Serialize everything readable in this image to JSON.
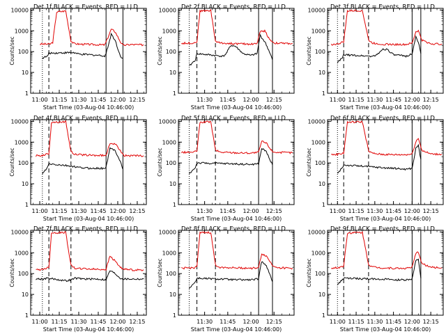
{
  "figure": {
    "series_colors": {
      "events": "#000000",
      "lld": "#e00000"
    },
    "line_color": "#000000"
  },
  "chart_data": [
    {
      "type": "line",
      "title": "Det 1f BLACK = Events, RED = LLD",
      "xlabel": "Start Time (03-Aug-04 10:46:00)",
      "ylabel": "Counts/sec",
      "yscale": "log",
      "ylim": [
        1,
        12000
      ],
      "xlim": [
        "10:53",
        "12:22"
      ],
      "xticks": [
        "11:00",
        "11:15",
        "11:30",
        "11:45",
        "12:00",
        "12:15"
      ],
      "yticks": [
        "1",
        "10",
        "100",
        "1000",
        "10000"
      ],
      "markers": {
        "dotted": [
          "11:02"
        ],
        "dashed": [
          "11:07",
          "11:24"
        ],
        "solid": [
          "11:51",
          "12:04"
        ]
      },
      "series": [
        {
          "color": "#e00000",
          "x": [
            "11:00",
            "11:08",
            "11:10",
            "11:13",
            "11:20",
            "11:24",
            "11:26",
            "11:30",
            "11:40",
            "11:50",
            "11:51",
            "11:55",
            "11:58",
            "12:02",
            "12:04",
            "12:10",
            "12:20"
          ],
          "values": [
            230,
            230,
            280,
            8000,
            9000,
            330,
            250,
            230,
            220,
            210,
            290,
            1200,
            900,
            300,
            200,
            220,
            210
          ]
        },
        {
          "color": "#000000",
          "x": [
            "11:02",
            "11:06",
            "11:07",
            "11:26",
            "11:30",
            "11:40",
            "11:48",
            "11:50",
            "11:51",
            "11:55",
            "11:58",
            "12:02",
            "12:04"
          ],
          "values": [
            50,
            60,
            85,
            90,
            75,
            70,
            65,
            60,
            80,
            700,
            350,
            60,
            50
          ]
        }
      ]
    },
    {
      "type": "line",
      "title": "Det 2f BLACK = Events, RED = LLD",
      "xlabel": "Start Time (03-Aug-04 10:46:00)",
      "ylabel": "Counts/sec",
      "yscale": "log",
      "ylim": [
        1,
        12000
      ],
      "xlim": [
        "11:13",
        "12:28"
      ],
      "xticks": [
        "11:30",
        "11:45",
        "12:00",
        "12:15"
      ],
      "yticks": [
        "1",
        "10",
        "100",
        "1000",
        "10000"
      ],
      "markers": {
        "dotted": [
          "11:20"
        ],
        "dashed": [
          "11:25",
          "11:37"
        ],
        "solid": [
          "12:05",
          "12:14"
        ]
      },
      "series": [
        {
          "color": "#e00000",
          "x": [
            "11:15",
            "11:23",
            "11:25",
            "11:27",
            "11:34",
            "11:37",
            "11:40",
            "11:50",
            "12:00",
            "12:04",
            "12:06",
            "12:09",
            "12:12",
            "12:15",
            "12:20",
            "12:27"
          ],
          "values": [
            250,
            260,
            300,
            9000,
            9500,
            320,
            260,
            240,
            230,
            250,
            900,
            1000,
            400,
            260,
            250,
            245
          ]
        },
        {
          "color": "#000000",
          "x": [
            "11:20",
            "11:24",
            "11:25",
            "11:42",
            "11:44",
            "11:47",
            "11:50",
            "11:55",
            "12:00",
            "12:04",
            "12:06",
            "12:09",
            "12:12",
            "12:14"
          ],
          "values": [
            20,
            40,
            80,
            60,
            80,
            200,
            180,
            80,
            65,
            80,
            600,
            300,
            100,
            40
          ]
        }
      ]
    },
    {
      "type": "line",
      "title": "Det 3f BLACK = Events, RED = LLD",
      "xlabel": "Start Time (03-Aug-04 10:46:00)",
      "ylabel": "Counts/sec",
      "yscale": "log",
      "ylim": [
        1,
        12000
      ],
      "xlim": [
        "10:52",
        "12:25"
      ],
      "xticks": [
        "11:00",
        "11:15",
        "11:30",
        "11:45",
        "12:00",
        "12:15"
      ],
      "yticks": [
        "1",
        "10",
        "100",
        "1000",
        "10000"
      ],
      "markers": {
        "dotted": [
          "11:00"
        ],
        "dashed": [
          "11:05",
          "11:25"
        ],
        "solid": [
          "12:00",
          "12:07"
        ]
      },
      "series": [
        {
          "color": "#e00000",
          "x": [
            "10:55",
            "11:00",
            "11:05",
            "11:08",
            "11:20",
            "11:25",
            "11:28",
            "11:35",
            "11:45",
            "11:55",
            "12:00",
            "12:03",
            "12:05",
            "12:08",
            "12:15",
            "12:24"
          ],
          "values": [
            220,
            230,
            300,
            9000,
            9500,
            360,
            260,
            230,
            220,
            220,
            250,
            900,
            1000,
            350,
            240,
            230
          ]
        },
        {
          "color": "#000000",
          "x": [
            "11:00",
            "11:04",
            "11:05",
            "11:28",
            "11:32",
            "11:36",
            "11:40",
            "11:45",
            "11:55",
            "12:00",
            "12:03",
            "12:05",
            "12:07"
          ],
          "values": [
            30,
            50,
            70,
            60,
            70,
            130,
            130,
            70,
            60,
            80,
            500,
            300,
            80
          ]
        }
      ]
    },
    {
      "type": "line",
      "title": "Det 4f BLACK = Events, RED = LLD",
      "xlabel": "Start Time (03-Aug-04 10:46:00)",
      "ylabel": "Counts/sec",
      "yscale": "log",
      "ylim": [
        1,
        12000
      ],
      "xlim": [
        "10:53",
        "12:22"
      ],
      "xticks": [
        "11:00",
        "11:15",
        "11:30",
        "11:45",
        "12:00",
        "12:15"
      ],
      "yticks": [
        "1",
        "10",
        "100",
        "1000",
        "10000"
      ],
      "markers": {
        "dotted": [
          "11:02"
        ],
        "dashed": [
          "11:07",
          "11:24"
        ],
        "solid": [
          "11:51",
          "12:04"
        ]
      },
      "series": [
        {
          "color": "#e00000",
          "x": [
            "10:57",
            "11:02",
            "11:07",
            "11:09",
            "11:20",
            "11:24",
            "11:27",
            "11:35",
            "11:45",
            "11:51",
            "11:54",
            "11:58",
            "12:02",
            "12:05",
            "12:12",
            "12:20"
          ],
          "values": [
            220,
            230,
            280,
            9000,
            9500,
            350,
            260,
            240,
            230,
            230,
            900,
            800,
            400,
            230,
            220,
            220
          ]
        },
        {
          "color": "#000000",
          "x": [
            "11:02",
            "11:06",
            "11:07",
            "11:24",
            "11:30",
            "11:40",
            "11:48",
            "11:51",
            "11:54",
            "11:58",
            "12:02",
            "12:04"
          ],
          "values": [
            30,
            60,
            90,
            70,
            60,
            55,
            55,
            60,
            500,
            400,
            120,
            50
          ]
        }
      ]
    },
    {
      "type": "line",
      "title": "Det 5f BLACK = Events, RED = LLD",
      "xlabel": "Start Time (03-Aug-04 10:46:00)",
      "ylabel": "Counts/sec",
      "yscale": "log",
      "ylim": [
        1,
        12000
      ],
      "xlim": [
        "11:13",
        "12:28"
      ],
      "xticks": [
        "11:30",
        "11:45",
        "12:00",
        "12:15"
      ],
      "yticks": [
        "1",
        "10",
        "100",
        "1000",
        "10000"
      ],
      "markers": {
        "dotted": [
          "11:20"
        ],
        "dashed": [
          "11:25",
          "11:37"
        ],
        "solid": [
          "12:05",
          "12:14"
        ]
      },
      "series": [
        {
          "color": "#e00000",
          "x": [
            "11:15",
            "11:23",
            "11:25",
            "11:27",
            "11:34",
            "11:37",
            "11:40",
            "11:50",
            "12:00",
            "12:05",
            "12:07",
            "12:10",
            "12:14",
            "12:18",
            "12:27"
          ],
          "values": [
            320,
            330,
            380,
            9000,
            9500,
            420,
            330,
            310,
            300,
            320,
            1100,
            900,
            350,
            320,
            310
          ]
        },
        {
          "color": "#000000",
          "x": [
            "11:20",
            "11:24",
            "11:25",
            "11:37",
            "11:40",
            "11:50",
            "12:00",
            "12:05",
            "12:07",
            "12:10",
            "12:14"
          ],
          "values": [
            30,
            60,
            100,
            95,
            95,
            90,
            85,
            90,
            500,
            350,
            80
          ]
        }
      ]
    },
    {
      "type": "line",
      "title": "Det 6f BLACK = Events, RED = LLD",
      "xlabel": "Start Time (03-Aug-04 10:46:00)",
      "ylabel": "Counts/sec",
      "yscale": "log",
      "ylim": [
        1,
        12000
      ],
      "xlim": [
        "10:52",
        "12:25"
      ],
      "xticks": [
        "11:00",
        "11:15",
        "11:30",
        "11:45",
        "12:00",
        "12:15"
      ],
      "yticks": [
        "1",
        "10",
        "100",
        "1000",
        "10000"
      ],
      "markers": {
        "dotted": [
          "11:00"
        ],
        "dashed": [
          "11:05",
          "11:25"
        ],
        "solid": [
          "12:00",
          "12:07"
        ]
      },
      "series": [
        {
          "color": "#e00000",
          "x": [
            "10:55",
            "11:00",
            "11:05",
            "11:08",
            "11:20",
            "11:25",
            "11:28",
            "11:35",
            "11:45",
            "11:55",
            "12:00",
            "12:03",
            "12:05",
            "12:08",
            "12:15",
            "12:24"
          ],
          "values": [
            250,
            260,
            300,
            9000,
            9500,
            380,
            290,
            260,
            250,
            250,
            270,
            1100,
            1500,
            400,
            270,
            260
          ]
        },
        {
          "color": "#000000",
          "x": [
            "11:00",
            "11:04",
            "11:05",
            "11:28",
            "11:35",
            "11:45",
            "11:55",
            "12:00",
            "12:03",
            "12:05",
            "12:07"
          ],
          "values": [
            30,
            60,
            80,
            65,
            60,
            55,
            50,
            55,
            500,
            700,
            150
          ]
        }
      ]
    },
    {
      "type": "line",
      "title": "Det 7f BLACK = Events, RED = LLD",
      "xlabel": "Start Time (03-Aug-04 10:46:00)",
      "ylabel": "Counts/sec",
      "yscale": "log",
      "ylim": [
        1,
        12000
      ],
      "xlim": [
        "10:53",
        "12:22"
      ],
      "xticks": [
        "11:00",
        "11:15",
        "11:30",
        "11:45",
        "12:00",
        "12:15"
      ],
      "yticks": [
        "1",
        "10",
        "100",
        "1000",
        "10000"
      ],
      "markers": {
        "dotted": [
          "11:02"
        ],
        "dashed": [
          "11:07",
          "11:24"
        ],
        "solid": [
          "11:51",
          "12:04"
        ]
      },
      "series": [
        {
          "color": "#e00000",
          "x": [
            "10:57",
            "11:02",
            "11:07",
            "11:09",
            "11:20",
            "11:24",
            "11:27",
            "11:35",
            "11:45",
            "11:51",
            "11:54",
            "11:58",
            "12:02",
            "12:05",
            "12:12",
            "12:20"
          ],
          "values": [
            150,
            160,
            200,
            9000,
            9500,
            250,
            180,
            170,
            160,
            160,
            700,
            400,
            200,
            160,
            150,
            150
          ]
        },
        {
          "color": "#000000",
          "x": [
            "10:57",
            "11:02",
            "11:07",
            "11:20",
            "11:24",
            "11:27",
            "11:35",
            "11:45",
            "11:51",
            "11:54",
            "11:58",
            "12:02",
            "12:05",
            "12:12",
            "12:20"
          ],
          "values": [
            55,
            55,
            60,
            45,
            50,
            60,
            55,
            55,
            50,
            140,
            100,
            60,
            55,
            55,
            55
          ]
        }
      ]
    },
    {
      "type": "line",
      "title": "Det 8f BLACK = Events, RED = LLD",
      "xlabel": "Start Time (03-Aug-04 10:46:00)",
      "ylabel": "Counts/sec",
      "yscale": "log",
      "ylim": [
        1,
        12000
      ],
      "xlim": [
        "11:13",
        "12:28"
      ],
      "xticks": [
        "11:30",
        "11:45",
        "12:00",
        "12:15"
      ],
      "yticks": [
        "1",
        "10",
        "100",
        "1000",
        "10000"
      ],
      "markers": {
        "dotted": [
          "11:20"
        ],
        "dashed": [
          "11:25",
          "11:37"
        ],
        "solid": [
          "12:05",
          "12:14"
        ]
      },
      "series": [
        {
          "color": "#e00000",
          "x": [
            "11:15",
            "11:23",
            "11:25",
            "11:27",
            "11:34",
            "11:37",
            "11:40",
            "11:50",
            "12:00",
            "12:05",
            "12:07",
            "12:10",
            "12:14",
            "12:18",
            "12:27"
          ],
          "values": [
            180,
            190,
            230,
            9000,
            9500,
            260,
            200,
            190,
            180,
            190,
            900,
            700,
            250,
            190,
            180
          ]
        },
        {
          "color": "#000000",
          "x": [
            "11:20",
            "11:24",
            "11:25",
            "11:37",
            "11:40",
            "11:50",
            "12:00",
            "12:05",
            "12:07",
            "12:10",
            "12:14"
          ],
          "values": [
            20,
            40,
            60,
            55,
            55,
            50,
            50,
            55,
            400,
            250,
            40
          ]
        }
      ]
    },
    {
      "type": "line",
      "title": "Det 9f BLACK = Events, RED = LLD",
      "xlabel": "Start Time (03-Aug-04 10:46:00)",
      "ylabel": "Counts/sec",
      "yscale": "log",
      "ylim": [
        1,
        12000
      ],
      "xlim": [
        "10:52",
        "12:25"
      ],
      "xticks": [
        "11:00",
        "11:15",
        "11:30",
        "11:45",
        "12:00",
        "12:15"
      ],
      "yticks": [
        "1",
        "10",
        "100",
        "1000",
        "10000"
      ],
      "markers": {
        "dotted": [
          "11:00"
        ],
        "dashed": [
          "11:05",
          "11:25"
        ],
        "solid": [
          "12:00",
          "12:07"
        ]
      },
      "series": [
        {
          "color": "#e00000",
          "x": [
            "10:55",
            "11:00",
            "11:05",
            "11:08",
            "11:20",
            "11:25",
            "11:28",
            "11:35",
            "11:45",
            "11:55",
            "12:00",
            "12:03",
            "12:05",
            "12:08",
            "12:15",
            "12:24"
          ],
          "values": [
            180,
            190,
            230,
            9000,
            9500,
            280,
            210,
            190,
            180,
            180,
            200,
            900,
            1100,
            300,
            200,
            190
          ]
        },
        {
          "color": "#000000",
          "x": [
            "11:00",
            "11:04",
            "11:05",
            "11:28",
            "11:35",
            "11:45",
            "11:55",
            "12:00",
            "12:03",
            "12:05",
            "12:07"
          ],
          "values": [
            30,
            50,
            60,
            55,
            55,
            50,
            50,
            55,
            400,
            500,
            60
          ]
        }
      ]
    }
  ]
}
